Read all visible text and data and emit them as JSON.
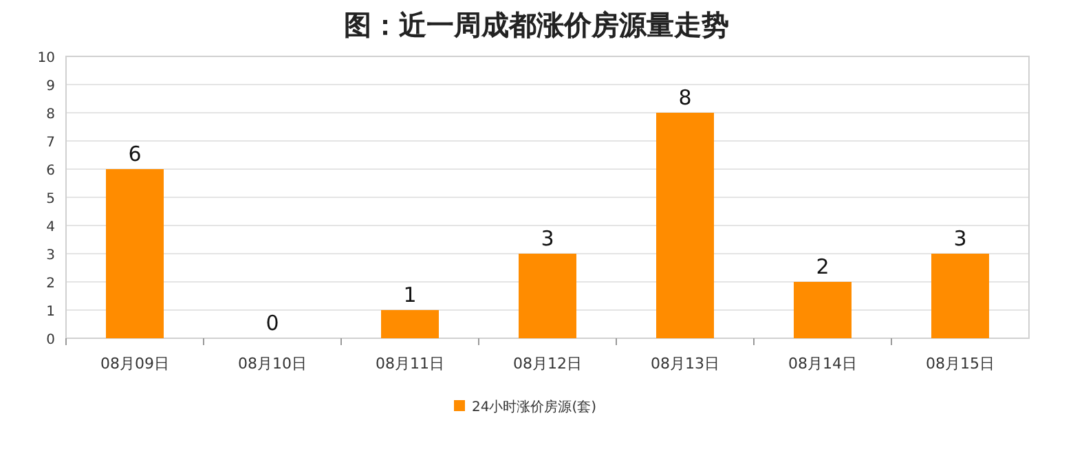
{
  "chart_data": {
    "type": "bar",
    "title": "图：近一周成都涨价房源量走势",
    "categories": [
      "08月09日",
      "08月10日",
      "08月11日",
      "08月12日",
      "08月13日",
      "08月14日",
      "08月15日"
    ],
    "series": [
      {
        "name": "24小时涨价房源(套)",
        "color": "#ff8c00",
        "values": [
          6,
          0,
          1,
          3,
          8,
          2,
          3
        ]
      }
    ],
    "ylim": [
      0,
      10
    ],
    "yticks": [
      0,
      1,
      2,
      3,
      4,
      5,
      6,
      7,
      8,
      9,
      10
    ],
    "grid": "y",
    "legend": "bottom",
    "data_labels": true
  }
}
